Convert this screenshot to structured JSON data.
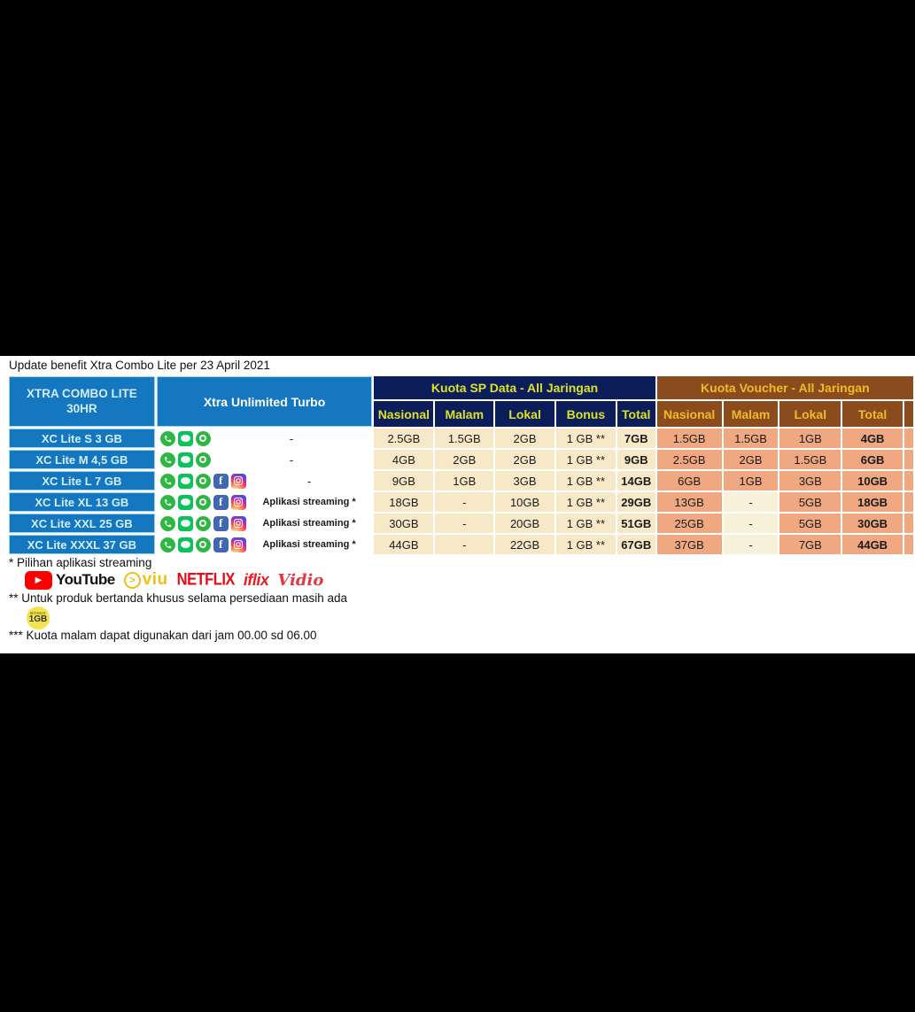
{
  "page": {
    "title": "Update benefit Xtra Combo Lite per 23 April 2021"
  },
  "colors": {
    "blue": "#1577c0",
    "planText": "#d2eefd",
    "navy": "#0b1d5b",
    "navyText": "#dde126",
    "brown": "#8a4b1d",
    "brownText": "#f0bb24",
    "cream": "#f7e9c8",
    "salmon": "#efa87f",
    "dashCream": "#f7f1da"
  },
  "table": {
    "corner_line1": "XTRA COMBO LITE",
    "corner_line2": "30HR",
    "turbo_header": "Xtra Unlimited Turbo",
    "sp_group": "Kuota SP Data - All Jaringan",
    "voucher_group": "Kuota Voucher - All Jaringan",
    "sp_columns": [
      "Nasional",
      "Malam",
      "Lokal",
      "Bonus",
      "Total"
    ],
    "voucher_columns": [
      "Nasional",
      "Malam",
      "Lokal",
      "Total"
    ],
    "rows": [
      {
        "plan": "XC Lite S 3 GB",
        "apps": [
          "whatsapp",
          "line",
          "chat"
        ],
        "turbo_note": "-",
        "sp": [
          "2.5GB",
          "1.5GB",
          "2GB",
          "1 GB **",
          "7GB"
        ],
        "voucher": [
          "1.5GB",
          "1.5GB",
          "1GB",
          "4GB"
        ]
      },
      {
        "plan": "XC Lite M 4,5 GB",
        "apps": [
          "whatsapp",
          "line",
          "chat"
        ],
        "turbo_note": "-",
        "sp": [
          "4GB",
          "2GB",
          "2GB",
          "1 GB **",
          "9GB"
        ],
        "voucher": [
          "2.5GB",
          "2GB",
          "1.5GB",
          "6GB"
        ]
      },
      {
        "plan": "XC Lite L 7 GB",
        "apps": [
          "whatsapp",
          "line",
          "chat",
          "facebook",
          "instagram"
        ],
        "turbo_note": "-",
        "sp": [
          "9GB",
          "1GB",
          "3GB",
          "1 GB **",
          "14GB"
        ],
        "voucher": [
          "6GB",
          "1GB",
          "3GB",
          "10GB"
        ]
      },
      {
        "plan": "XC Lite XL 13 GB",
        "apps": [
          "whatsapp",
          "line",
          "chat",
          "facebook",
          "instagram"
        ],
        "turbo_note": "Aplikasi streaming *",
        "sp": [
          "18GB",
          "-",
          "10GB",
          "1 GB **",
          "29GB"
        ],
        "voucher": [
          "13GB",
          "-",
          "5GB",
          "18GB"
        ]
      },
      {
        "plan": "XC Lite XXL 25 GB",
        "apps": [
          "whatsapp",
          "line",
          "chat",
          "facebook",
          "instagram"
        ],
        "turbo_note": "Aplikasi streaming *",
        "sp": [
          "30GB",
          "-",
          "20GB",
          "1 GB **",
          "51GB"
        ],
        "voucher": [
          "25GB",
          "-",
          "5GB",
          "30GB"
        ]
      },
      {
        "plan": "XC Lite XXXL 37 GB",
        "apps": [
          "whatsapp",
          "line",
          "chat",
          "facebook",
          "instagram"
        ],
        "turbo_note": "Aplikasi streaming *",
        "sp": [
          "44GB",
          "-",
          "22GB",
          "1 GB **",
          "67GB"
        ],
        "voucher": [
          "37GB",
          "-",
          "7GB",
          "44GB"
        ]
      }
    ]
  },
  "footnotes": {
    "streaming": "* Pilihan aplikasi streaming",
    "logos": [
      "YouTube",
      "viu",
      "NETFLIX",
      "iflix",
      "Vidio"
    ],
    "bonus": "** Untuk produk bertanda khusus selama persediaan masih ada",
    "badge_top": "BONUS",
    "badge_value": "1GB",
    "night": "*** Kuota malam dapat digunakan dari jam 00.00 sd 06.00"
  }
}
